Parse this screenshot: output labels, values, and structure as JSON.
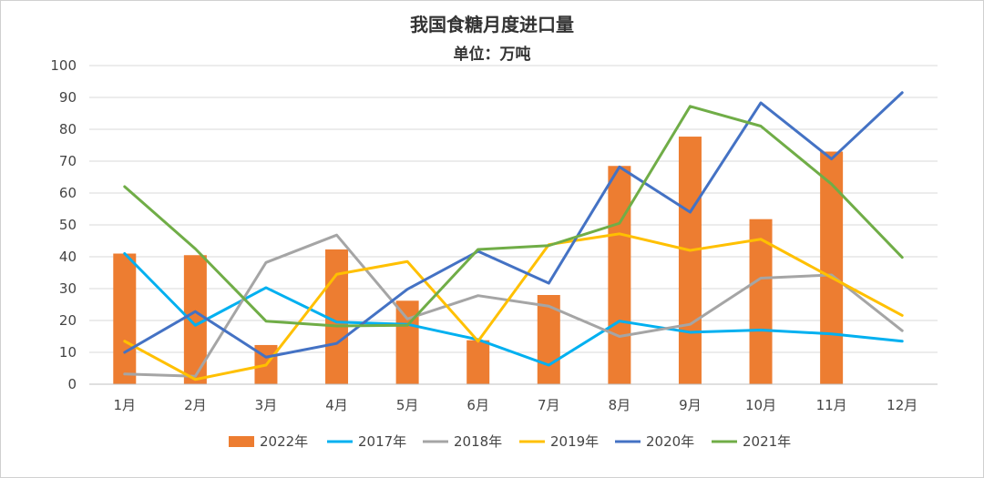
{
  "chart_data": {
    "type": "bar",
    "title": "我国食糖月度进口量",
    "subtitle": "单位：万吨",
    "xlabel": "",
    "ylabel": "",
    "ylim": [
      0,
      100
    ],
    "yticks": [
      0,
      10,
      20,
      30,
      40,
      50,
      60,
      70,
      80,
      90,
      100
    ],
    "grid": true,
    "legend_position": "bottom",
    "categories": [
      "1月",
      "2月",
      "3月",
      "4月",
      "5月",
      "6月",
      "7月",
      "8月",
      "9月",
      "10月",
      "11月",
      "12月"
    ],
    "bar_series": {
      "name": "2022年",
      "color": "#ED7D31",
      "values": [
        41,
        40.5,
        12.3,
        42.3,
        26.2,
        13.8,
        28,
        68.5,
        77.7,
        51.8,
        73,
        null
      ]
    },
    "line_series": [
      {
        "name": "2017年",
        "color": "#00B0F0",
        "values": [
          41,
          18.5,
          30.3,
          19.5,
          18.8,
          14,
          6,
          19.8,
          16.3,
          17,
          15.8,
          13.5
        ]
      },
      {
        "name": "2018年",
        "color": "#A5A5A5",
        "values": [
          3.2,
          2.5,
          38.2,
          46.8,
          20.5,
          27.8,
          24.5,
          15,
          18.8,
          33.3,
          34.3,
          16.8
        ]
      },
      {
        "name": "2019年",
        "color": "#FFC000",
        "values": [
          13.5,
          1.5,
          6,
          34.5,
          38.5,
          13.5,
          43.8,
          47.2,
          42,
          45.5,
          33.5,
          21.6
        ]
      },
      {
        "name": "2020年",
        "color": "#4472C4",
        "values": [
          10,
          22.8,
          8.5,
          12.8,
          29.8,
          41.7,
          31.7,
          68.2,
          54,
          88.3,
          70.7,
          91.5
        ]
      },
      {
        "name": "2021年",
        "color": "#70AD47",
        "values": [
          62,
          42.5,
          19.8,
          18.3,
          18.5,
          42.3,
          43.5,
          50.5,
          87.2,
          81,
          62.8,
          39.8
        ]
      }
    ]
  }
}
